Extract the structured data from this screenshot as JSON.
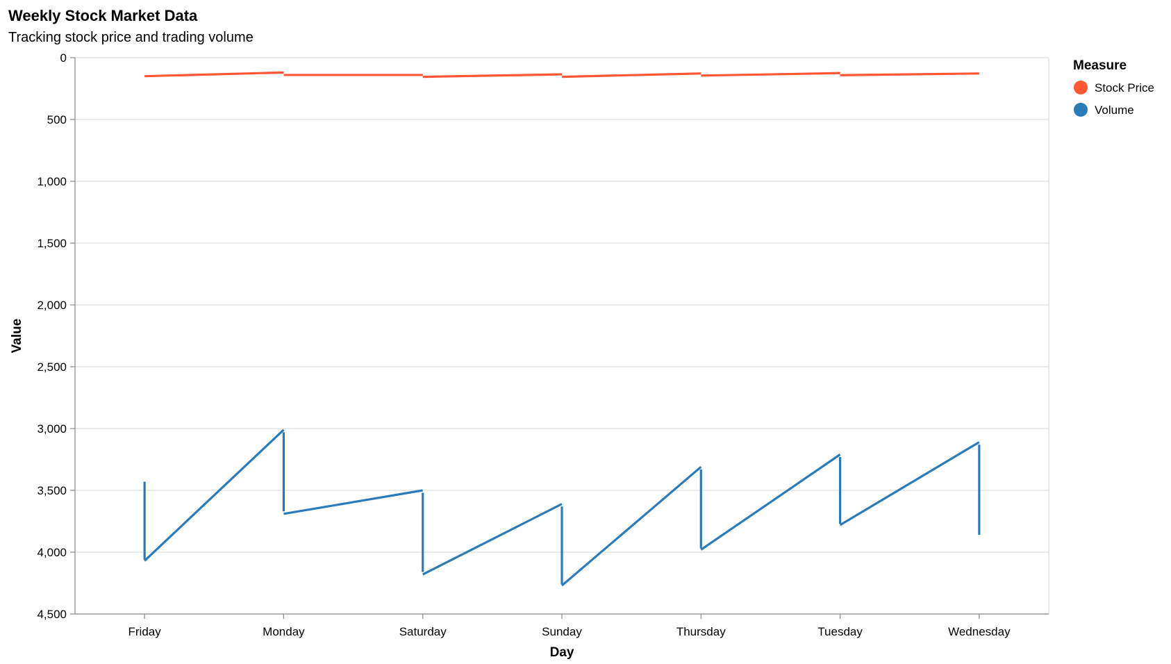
{
  "chart_data": {
    "type": "line",
    "title": "Weekly Stock Market Data",
    "subtitle": "Tracking stock price and trading volume",
    "xlabel": "Day",
    "ylabel": "Value",
    "categories": [
      "Friday",
      "Monday",
      "Saturday",
      "Sunday",
      "Thursday",
      "Tuesday",
      "Wednesday"
    ],
    "y_ticks": [
      "0",
      "500",
      "1,000",
      "1,500",
      "2,000",
      "2,500",
      "3,000",
      "3,500",
      "4,000",
      "4,500"
    ],
    "ylim": [
      0,
      4500
    ],
    "y_reversed": true,
    "grid": true,
    "legend": {
      "title": "Measure",
      "position": "right",
      "items": [
        {
          "name": "Stock Price",
          "color": "#ff5733"
        },
        {
          "name": "Volume",
          "color": "#2a7bba"
        }
      ]
    },
    "series": [
      {
        "name": "Stock Price",
        "color": "#ff5733",
        "segments": [
          [
            [
              "Friday",
              150
            ],
            [
              "Monday",
              120
            ]
          ],
          [
            [
              "Monday",
              140
            ],
            [
              "Saturday",
              140
            ]
          ],
          [
            [
              "Saturday",
              155
            ],
            [
              "Sunday",
              135
            ]
          ],
          [
            [
              "Sunday",
              155
            ],
            [
              "Thursday",
              128
            ]
          ],
          [
            [
              "Thursday",
              145
            ],
            [
              "Tuesday",
              125
            ]
          ],
          [
            [
              "Tuesday",
              142
            ],
            [
              "Wednesday",
              128
            ]
          ]
        ]
      },
      {
        "name": "Volume",
        "color": "#2a7bba",
        "segments": [
          [
            [
              "Friday",
              3430
            ],
            [
              "Friday",
              4060
            ]
          ],
          [
            [
              "Friday",
              4070
            ],
            [
              "Monday",
              3010
            ]
          ],
          [
            [
              "Monday",
              3030
            ],
            [
              "Monday",
              3670
            ]
          ],
          [
            [
              "Monday",
              3690
            ],
            [
              "Saturday",
              3500
            ]
          ],
          [
            [
              "Saturday",
              3520
            ],
            [
              "Saturday",
              4160
            ]
          ],
          [
            [
              "Saturday",
              4180
            ],
            [
              "Sunday",
              3610
            ]
          ],
          [
            [
              "Sunday",
              3630
            ],
            [
              "Sunday",
              4260
            ]
          ],
          [
            [
              "Sunday",
              4270
            ],
            [
              "Thursday",
              3310
            ]
          ],
          [
            [
              "Thursday",
              3330
            ],
            [
              "Thursday",
              3970
            ]
          ],
          [
            [
              "Thursday",
              3980
            ],
            [
              "Tuesday",
              3210
            ]
          ],
          [
            [
              "Tuesday",
              3230
            ],
            [
              "Tuesday",
              3770
            ]
          ],
          [
            [
              "Tuesday",
              3780
            ],
            [
              "Wednesday",
              3110
            ]
          ],
          [
            [
              "Wednesday",
              3130
            ],
            [
              "Wednesday",
              3860
            ]
          ]
        ]
      }
    ]
  }
}
